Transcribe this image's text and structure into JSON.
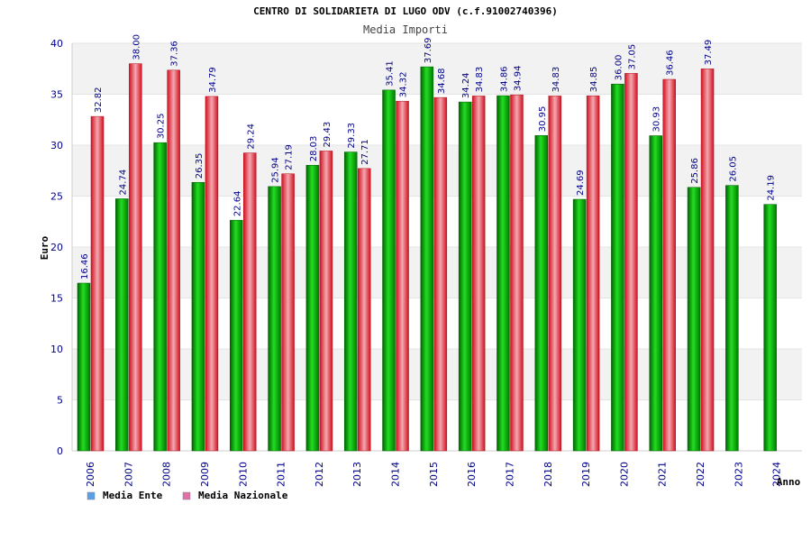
{
  "chart_data": {
    "type": "bar",
    "title": "CENTRO DI SOLIDARIETA DI LUGO ODV (c.f.91002740396)",
    "subtitle": "Media Importi",
    "xlabel": "Anno",
    "ylabel": "Euro",
    "ylim": [
      0,
      40
    ],
    "yticks": [
      0,
      5,
      10,
      15,
      20,
      25,
      30,
      35,
      40
    ],
    "ytick_labels": [
      "0",
      "5",
      "10",
      "15",
      "20",
      "25",
      "30",
      "35",
      "40"
    ],
    "categories": [
      "2006",
      "2007",
      "2008",
      "2009",
      "2010",
      "2011",
      "2012",
      "2013",
      "2014",
      "2015",
      "2016",
      "2017",
      "2018",
      "2019",
      "2020",
      "2021",
      "2022",
      "2023",
      "2024"
    ],
    "series": [
      {
        "name": "Media Ente",
        "color": "#00b000",
        "values": [
          16.46,
          24.74,
          30.25,
          26.35,
          22.64,
          25.94,
          28.03,
          29.33,
          35.41,
          37.69,
          34.24,
          34.86,
          30.95,
          24.69,
          36.0,
          30.93,
          25.86,
          26.05,
          24.19
        ],
        "labels": [
          "16.46",
          "24.74",
          "30.25",
          "26.35",
          "22.64",
          "25.94",
          "28.03",
          "29.33",
          "35.41",
          "37.69",
          "34.24",
          "34.86",
          "30.95",
          "24.69",
          "36.00",
          "30.93",
          "25.86",
          "26.05",
          "24.19"
        ]
      },
      {
        "name": "Media Nazionale",
        "color": "#e0303c",
        "values": [
          32.82,
          38.0,
          37.36,
          34.79,
          29.24,
          27.19,
          29.43,
          27.71,
          34.32,
          34.68,
          34.83,
          34.94,
          34.83,
          34.85,
          37.05,
          36.46,
          37.49,
          null,
          null
        ],
        "labels": [
          "32.82",
          "38.00",
          "37.36",
          "34.79",
          "29.24",
          "27.19",
          "29.43",
          "27.71",
          "34.32",
          "34.68",
          "34.83",
          "34.94",
          "34.83",
          "34.85",
          "37.05",
          "36.46",
          "37.49",
          "",
          ""
        ]
      }
    ],
    "legend": [
      {
        "name": "Media Ente",
        "swatch": "#5aa0e6"
      },
      {
        "name": "Media Nazionale",
        "swatch": "#e070a8"
      }
    ],
    "legend_position": "bottom-left",
    "grid": true
  }
}
